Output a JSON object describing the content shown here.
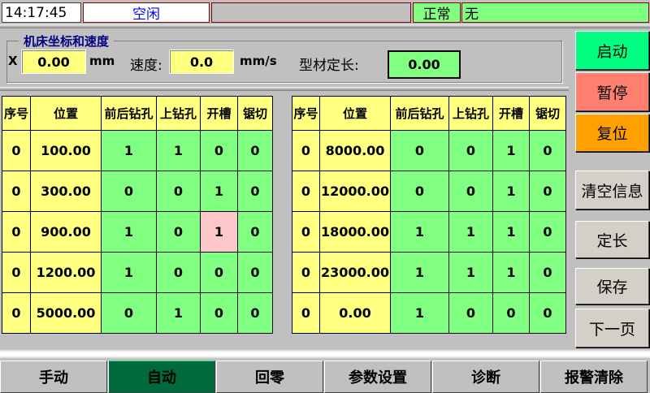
{
  "status_bar": {
    "time": "14:17:45",
    "state": "空闲",
    "message": "",
    "health": "正常",
    "alarm": "无"
  },
  "coords": {
    "title": "机床坐标和速度",
    "x_label": "X",
    "x_value": "0.00",
    "x_unit": "mm",
    "speed_label": "速度:",
    "speed_value": "0.0",
    "speed_unit": "mm/s",
    "length_label": "型材定长:",
    "length_value": "0.00"
  },
  "table_headers": [
    "序号",
    "位置",
    "前后钻孔",
    "上钻孔",
    "开槽",
    "锯切"
  ],
  "left_rows": [
    [
      "0",
      "100.00",
      "1",
      "1",
      "0",
      "0"
    ],
    [
      "0",
      "300.00",
      "0",
      "0",
      "1",
      "0"
    ],
    [
      "0",
      "900.00",
      "1",
      "0",
      "1",
      "0"
    ],
    [
      "0",
      "1200.00",
      "1",
      "0",
      "0",
      "0"
    ],
    [
      "0",
      "5000.00",
      "0",
      "1",
      "0",
      "0"
    ]
  ],
  "right_rows": [
    [
      "0",
      "8000.00",
      "0",
      "0",
      "1",
      "0"
    ],
    [
      "0",
      "12000.00",
      "0",
      "0",
      "1",
      "0"
    ],
    [
      "0",
      "18000.00",
      "1",
      "1",
      "1",
      "0"
    ],
    [
      "0",
      "23000.00",
      "1",
      "1",
      "1",
      "0"
    ],
    [
      "0",
      "0.00",
      "1",
      "0",
      "0",
      "0"
    ]
  ],
  "highlighted_cell": {
    "table": "left",
    "row": 2,
    "col": 4,
    "color": "#ffc8c8"
  },
  "side_buttons": [
    {
      "label": "启动",
      "color": "#00ff80"
    },
    {
      "label": "暂停",
      "color": "#ff8070"
    },
    {
      "label": "复位",
      "color": "#ffa000"
    },
    {
      "label": "清空信息"
    },
    {
      "label": "定长"
    },
    {
      "label": "保存"
    },
    {
      "label": "下一页"
    }
  ],
  "nav": [
    {
      "label": "手动"
    },
    {
      "label": "自动",
      "active": true,
      "color": "#006a3c"
    },
    {
      "label": "回零"
    },
    {
      "label": "参数设置"
    },
    {
      "label": "诊断"
    },
    {
      "label": "报警清除"
    }
  ],
  "colors": {
    "cell_yellow": "#ffff80",
    "cell_green": "#80ff80"
  }
}
